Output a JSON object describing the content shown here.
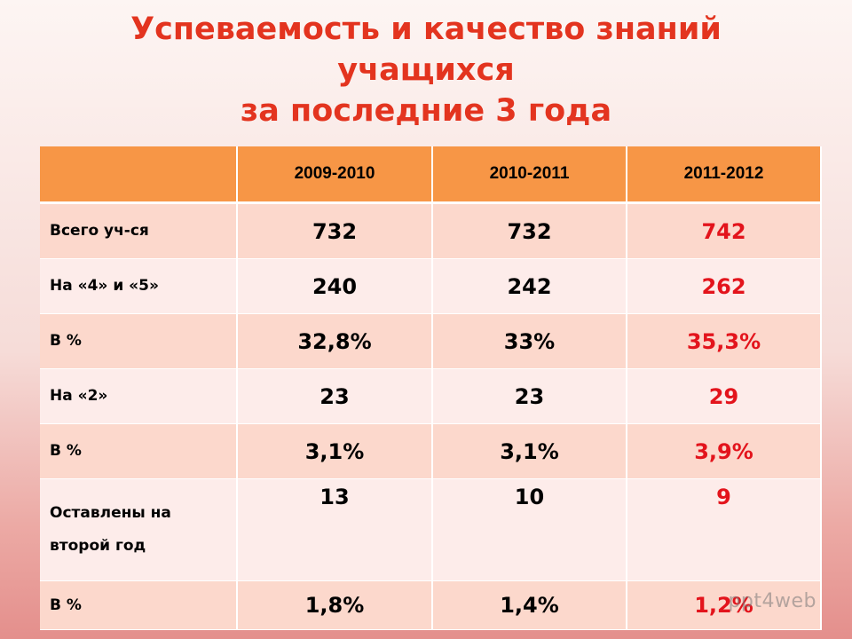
{
  "title": {
    "line1": "Успеваемость и качество знаний",
    "line2": "учащихся",
    "line3": "за последние 3 года"
  },
  "table": {
    "headers": [
      "",
      "2009-2010",
      "2010-2011",
      "2011-2012"
    ],
    "rows": [
      {
        "label": "Всего уч-ся",
        "values": [
          "732",
          "732",
          "742"
        ]
      },
      {
        "label": "На «4» и «5»",
        "values": [
          "240",
          "242",
          "262"
        ]
      },
      {
        "label": "В %",
        "values": [
          "32,8%",
          "33%",
          "35,3%"
        ]
      },
      {
        "label": "На «2»",
        "values": [
          "23",
          "23",
          "29"
        ]
      },
      {
        "label": "В %",
        "values": [
          "3,1%",
          "3,1%",
          "3,9%"
        ]
      },
      {
        "label": "Оставлены на второй год",
        "values": [
          "13",
          "10",
          "9"
        ]
      },
      {
        "label": "В %",
        "values": [
          "1,8%",
          "1,4%",
          "1,2%"
        ]
      }
    ]
  },
  "colors": {
    "title": "#e3341f",
    "header_bg": "#f79646",
    "row_odd": "#fcd8cc",
    "row_even": "#fdecea",
    "highlight_value": "#e3141c"
  },
  "watermark": "ppt4web"
}
